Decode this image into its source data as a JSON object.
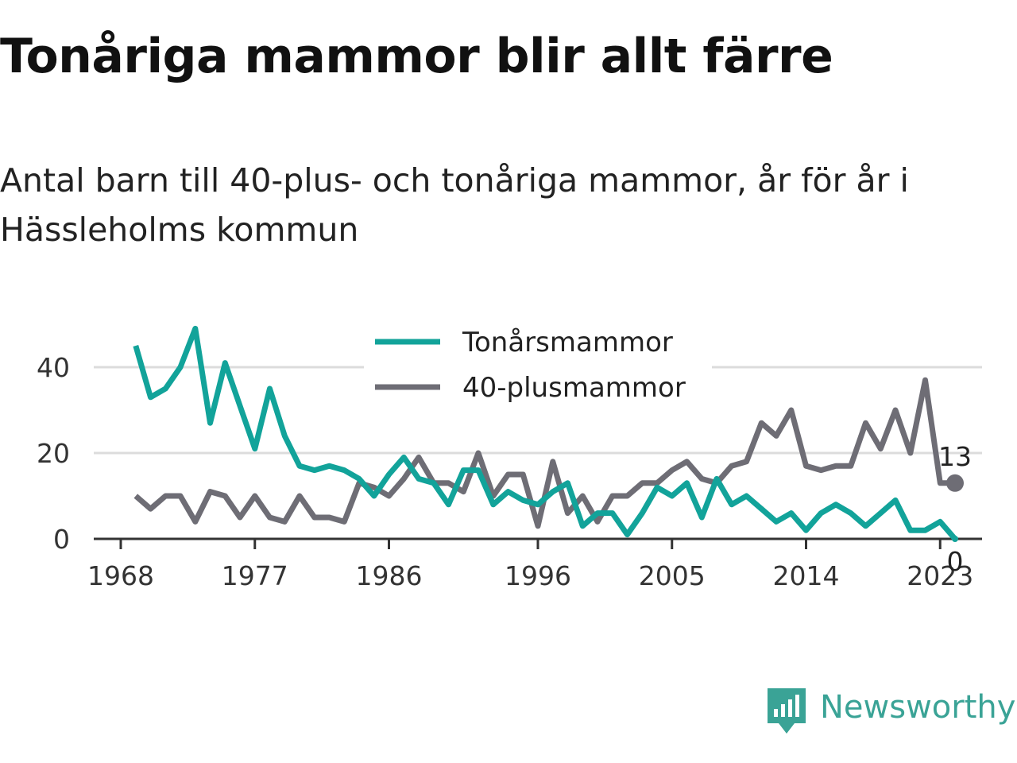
{
  "title": "Tonåriga mammor blir allt färre",
  "subtitle": "Antal barn till 40-plus- och tonåriga mammor, år för år i Hässleholms kommun",
  "brand": {
    "name": "Newsworthy",
    "icon": "newsworthy-logo-icon",
    "color": "#3aa396"
  },
  "chart_data": {
    "type": "line",
    "title": "",
    "xlabel": "",
    "ylabel": "",
    "x": [
      1969,
      1970,
      1971,
      1972,
      1973,
      1974,
      1975,
      1976,
      1977,
      1978,
      1979,
      1980,
      1981,
      1982,
      1983,
      1984,
      1985,
      1986,
      1987,
      1988,
      1989,
      1990,
      1991,
      1992,
      1993,
      1994,
      1995,
      1996,
      1997,
      1998,
      1999,
      2000,
      2001,
      2002,
      2003,
      2004,
      2005,
      2006,
      2007,
      2008,
      2009,
      2010,
      2011,
      2012,
      2013,
      2014,
      2015,
      2016,
      2017,
      2018,
      2019,
      2020,
      2021,
      2022,
      2023,
      2024
    ],
    "x_ticks": [
      1968,
      1977,
      1986,
      1996,
      2005,
      2014,
      2023
    ],
    "y_ticks": [
      0,
      20,
      40
    ],
    "ylim": [
      0,
      50
    ],
    "xlim": [
      1968,
      2024
    ],
    "grid": true,
    "legend_position": "top-center",
    "series": [
      {
        "name": "Tonårsmammor",
        "color": "#12a39a",
        "values": [
          45,
          33,
          35,
          40,
          49,
          27,
          41,
          31,
          21,
          35,
          24,
          17,
          16,
          17,
          16,
          14,
          10,
          15,
          19,
          14,
          13,
          8,
          16,
          16,
          8,
          11,
          9,
          8,
          11,
          13,
          3,
          6,
          6,
          1,
          6,
          12,
          10,
          13,
          5,
          14,
          8,
          10,
          7,
          4,
          6,
          2,
          6,
          8,
          6,
          3,
          6,
          9,
          2,
          2,
          4,
          0
        ]
      },
      {
        "name": "40-plusmammor",
        "color": "#6e6d75",
        "values": [
          10,
          7,
          10,
          10,
          4,
          11,
          10,
          5,
          10,
          5,
          4,
          10,
          5,
          5,
          4,
          13,
          12,
          10,
          14,
          19,
          13,
          13,
          11,
          20,
          10,
          15,
          15,
          3,
          18,
          6,
          10,
          4,
          10,
          10,
          13,
          13,
          16,
          18,
          14,
          13,
          17,
          18,
          27,
          24,
          30,
          17,
          16,
          17,
          17,
          27,
          21,
          30,
          20,
          37,
          13,
          13
        ]
      }
    ],
    "end_labels": [
      {
        "series": "40-plusmammor",
        "text": "13"
      },
      {
        "series": "Tonårsmammor",
        "text": "0"
      }
    ]
  }
}
